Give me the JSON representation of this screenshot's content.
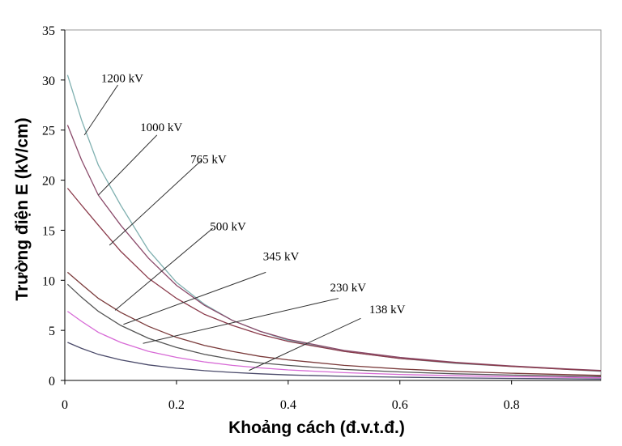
{
  "chart_data": {
    "type": "line",
    "xlabel": "Khoảng cách (đ.v.t.đ.)",
    "ylabel": "Trường điện E (kV/cm)",
    "xlim": [
      0,
      0.96
    ],
    "ylim": [
      0,
      35
    ],
    "xticks": [
      0,
      0.2,
      0.4,
      0.6,
      0.8
    ],
    "xtick_labels": [
      "0",
      "0.2",
      "0.4",
      "0.6",
      "0.8"
    ],
    "yticks": [
      0,
      5,
      10,
      15,
      20,
      25,
      30,
      35
    ],
    "ytick_labels": [
      "0",
      "5",
      "10",
      "15",
      "20",
      "25",
      "30",
      "35"
    ],
    "grid": false,
    "series": [
      {
        "name": "1200 kV",
        "color": "#7fb0b0",
        "x": [
          0.005,
          0.03,
          0.06,
          0.1,
          0.15,
          0.2,
          0.25,
          0.3,
          0.35,
          0.4,
          0.5,
          0.6,
          0.7,
          0.8,
          0.9,
          0.96
        ],
        "y": [
          30.5,
          26,
          21.5,
          17.5,
          13,
          9.8,
          7.6,
          6.0,
          4.9,
          4.0,
          2.9,
          2.2,
          1.7,
          1.4,
          1.1,
          0.9
        ],
        "label_anchor": [
          0.095,
          29.5
        ],
        "label_x": 0.065,
        "label_y": 29.8,
        "pointer_to": [
          0.035,
          24.5
        ]
      },
      {
        "name": "1000 kV",
        "color": "#8a4a6a",
        "x": [
          0.005,
          0.03,
          0.06,
          0.1,
          0.15,
          0.2,
          0.25,
          0.3,
          0.35,
          0.4,
          0.5,
          0.6,
          0.7,
          0.8,
          0.9,
          0.96
        ],
        "y": [
          25.5,
          22,
          18.5,
          15.5,
          12.2,
          9.5,
          7.5,
          6.0,
          4.9,
          4.1,
          3.0,
          2.3,
          1.8,
          1.45,
          1.15,
          1.0
        ],
        "label_anchor": [
          0.165,
          24.5
        ],
        "label_x": 0.135,
        "label_y": 24.9,
        "pointer_to": [
          0.06,
          18.5
        ]
      },
      {
        "name": "765 kV",
        "color": "#8a3a4a",
        "x": [
          0.005,
          0.03,
          0.06,
          0.1,
          0.15,
          0.2,
          0.25,
          0.3,
          0.35,
          0.4,
          0.5,
          0.6,
          0.7,
          0.8,
          0.9,
          0.96
        ],
        "y": [
          19.2,
          17.5,
          15.5,
          12.9,
          10.2,
          8.2,
          6.6,
          5.5,
          4.6,
          3.9,
          2.9,
          2.2,
          1.75,
          1.4,
          1.1,
          0.95
        ],
        "label_anchor": [
          0.245,
          22.0
        ],
        "label_x": 0.225,
        "label_y": 21.7,
        "pointer_to": [
          0.08,
          13.5
        ]
      },
      {
        "name": "500 kV",
        "color": "#7a3a3a",
        "x": [
          0.005,
          0.03,
          0.06,
          0.1,
          0.15,
          0.2,
          0.25,
          0.3,
          0.35,
          0.4,
          0.5,
          0.6,
          0.7,
          0.8,
          0.9,
          0.96
        ],
        "y": [
          10.8,
          9.6,
          8.2,
          6.8,
          5.4,
          4.3,
          3.5,
          2.9,
          2.4,
          2.05,
          1.5,
          1.15,
          0.9,
          0.72,
          0.58,
          0.5
        ],
        "label_anchor": [
          0.265,
          15.2
        ],
        "label_x": 0.26,
        "label_y": 15.0,
        "pointer_to": [
          0.09,
          7.0
        ]
      },
      {
        "name": "345 kV",
        "color": "#555555",
        "x": [
          0.005,
          0.03,
          0.06,
          0.1,
          0.15,
          0.2,
          0.25,
          0.3,
          0.35,
          0.4,
          0.5,
          0.6,
          0.7,
          0.8,
          0.9,
          0.96
        ],
        "y": [
          9.6,
          8.3,
          6.9,
          5.5,
          4.2,
          3.3,
          2.6,
          2.1,
          1.75,
          1.5,
          1.1,
          0.85,
          0.66,
          0.53,
          0.43,
          0.38
        ],
        "label_anchor": [
          0.36,
          10.8
        ],
        "label_x": 0.355,
        "label_y": 12.0,
        "pointer_to": [
          0.105,
          5.6
        ]
      },
      {
        "name": "230 kV",
        "color": "#d76ad6",
        "x": [
          0.005,
          0.03,
          0.06,
          0.1,
          0.15,
          0.2,
          0.25,
          0.3,
          0.35,
          0.4,
          0.5,
          0.6,
          0.7,
          0.8,
          0.9,
          0.96
        ],
        "y": [
          6.9,
          5.9,
          4.8,
          3.8,
          2.9,
          2.3,
          1.85,
          1.5,
          1.25,
          1.05,
          0.78,
          0.6,
          0.47,
          0.38,
          0.31,
          0.27
        ],
        "label_anchor": [
          0.49,
          8.2
        ],
        "label_x": 0.475,
        "label_y": 8.9,
        "pointer_to": [
          0.14,
          3.7
        ]
      },
      {
        "name": "138 kV",
        "color": "#4a4a6a",
        "x": [
          0.005,
          0.03,
          0.06,
          0.1,
          0.15,
          0.2,
          0.25,
          0.3,
          0.35,
          0.4,
          0.5,
          0.6,
          0.7,
          0.8,
          0.9,
          0.96
        ],
        "y": [
          3.8,
          3.2,
          2.6,
          2.05,
          1.55,
          1.22,
          0.98,
          0.8,
          0.66,
          0.55,
          0.41,
          0.32,
          0.25,
          0.2,
          0.16,
          0.14
        ],
        "label_anchor": [
          0.53,
          6.2
        ],
        "label_x": 0.545,
        "label_y": 6.7,
        "pointer_to": [
          0.33,
          1.0
        ]
      }
    ]
  }
}
